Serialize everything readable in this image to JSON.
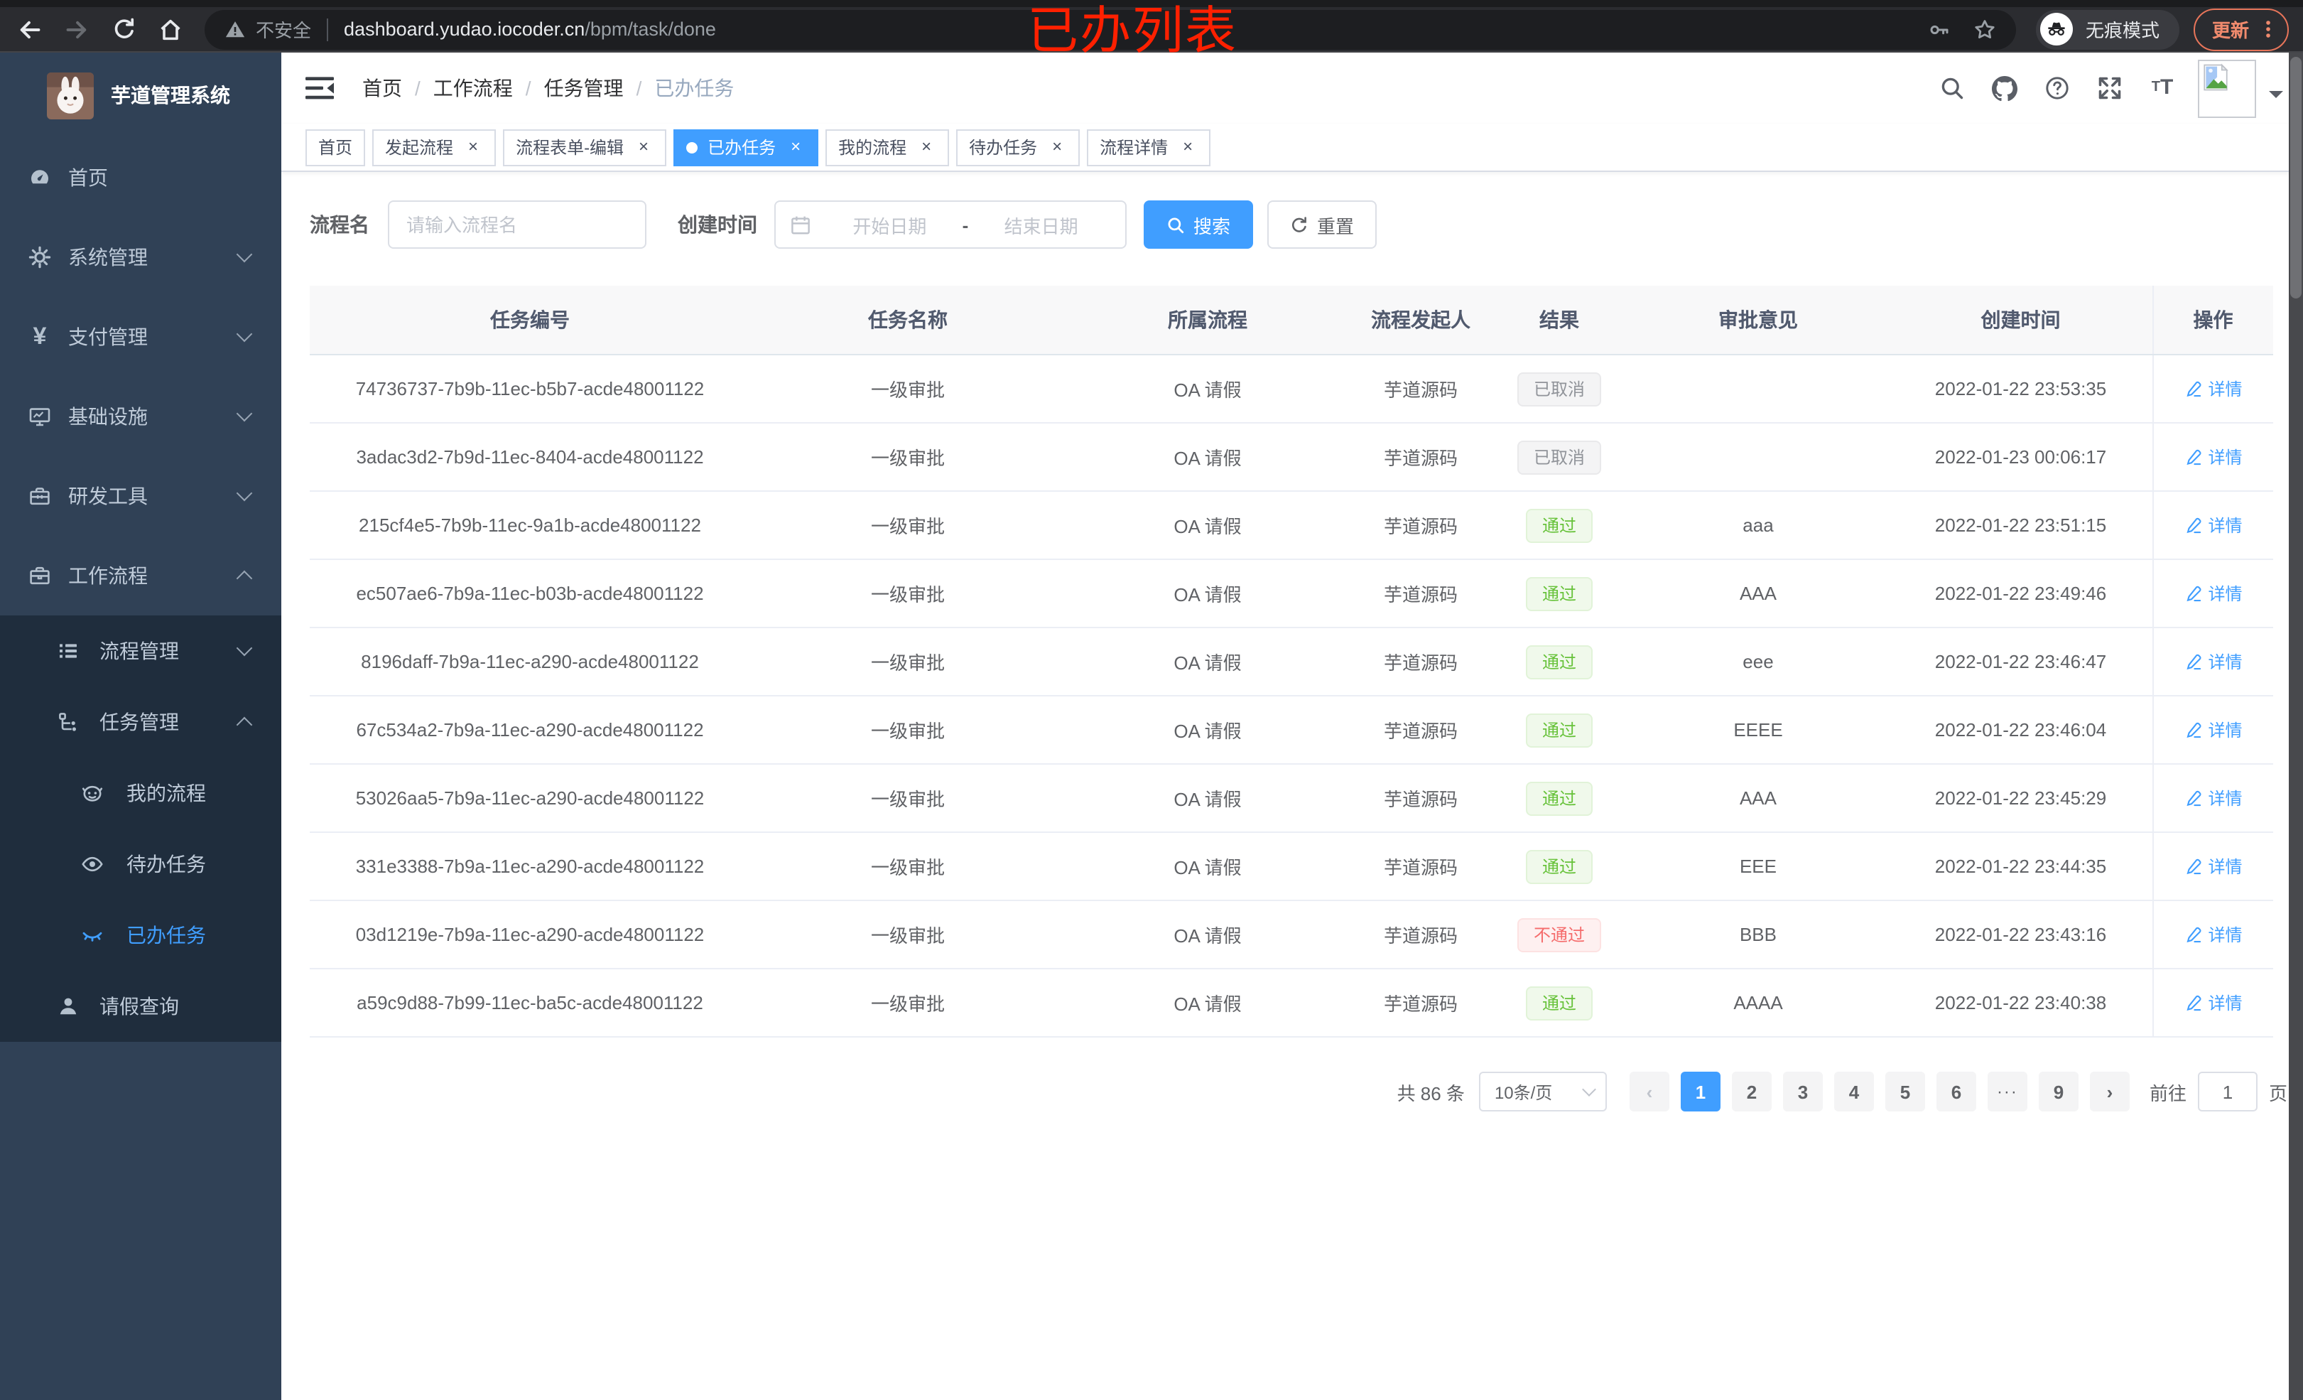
{
  "colors": {
    "accent": "#409eff",
    "success": "#67c23a",
    "danger": "#f56c6c",
    "info": "#909399",
    "sidebar_bg": "#304156",
    "submenu_bg": "#1f2d3d",
    "annotation": "#ff2000"
  },
  "browser": {
    "security_label": "不安全",
    "url_host": "dashboard.yudao.iocoder.cn",
    "url_path": "/bpm/task/done",
    "incognito_label": "无痕模式",
    "update_label": "更新",
    "icons": [
      "back-icon",
      "forward-icon",
      "reload-icon",
      "home-icon",
      "warning-icon",
      "key-icon",
      "star-icon",
      "incognito-icon",
      "more-vertical-icon"
    ]
  },
  "annotation": {
    "text": "已办列表"
  },
  "sidebar": {
    "logo_title": "芋道管理系统",
    "menu": [
      {
        "key": "home",
        "label": "首页",
        "icon": "dashboard-icon",
        "level": 1
      },
      {
        "key": "system",
        "label": "系统管理",
        "icon": "gear-icon",
        "level": 1,
        "chevron": "down"
      },
      {
        "key": "payment",
        "label": "支付管理",
        "icon": "yen-icon",
        "level": 1,
        "chevron": "down"
      },
      {
        "key": "infra",
        "label": "基础设施",
        "icon": "monitor-icon",
        "level": 1,
        "chevron": "down"
      },
      {
        "key": "devtools",
        "label": "研发工具",
        "icon": "toolbox-icon",
        "level": 1,
        "chevron": "down"
      },
      {
        "key": "workflow",
        "label": "工作流程",
        "icon": "briefcase-icon",
        "level": 1,
        "chevron": "up"
      },
      {
        "key": "process-mgmt",
        "label": "流程管理",
        "icon": "list-tree-icon",
        "level": 2,
        "chevron": "down",
        "dark": true
      },
      {
        "key": "task-mgmt",
        "label": "任务管理",
        "icon": "flow-icon",
        "level": 2,
        "chevron": "up",
        "dark": true
      },
      {
        "key": "my-process",
        "label": "我的流程",
        "icon": "face-icon",
        "level": 3,
        "dark": true
      },
      {
        "key": "todo-task",
        "label": "待办任务",
        "icon": "eye-open-icon",
        "level": 3,
        "dark": true
      },
      {
        "key": "done-task",
        "label": "已办任务",
        "icon": "eye-closed-icon",
        "level": 3,
        "dark": true,
        "active": true
      },
      {
        "key": "leave-query",
        "label": "请假查询",
        "icon": "user-icon",
        "level": 2,
        "dark": true
      }
    ]
  },
  "header": {
    "breadcrumb": [
      "首页",
      "工作流程",
      "任务管理",
      "已办任务"
    ],
    "icons": [
      "search-icon",
      "github-icon",
      "help-icon",
      "fullscreen-icon",
      "font-size-icon"
    ]
  },
  "tabs": [
    {
      "key": "home",
      "label": "首页",
      "closable": false
    },
    {
      "key": "start-process",
      "label": "发起流程",
      "closable": true
    },
    {
      "key": "form-edit",
      "label": "流程表单-编辑",
      "closable": true
    },
    {
      "key": "done-task",
      "label": "已办任务",
      "closable": true,
      "active": true
    },
    {
      "key": "my-process",
      "label": "我的流程",
      "closable": true
    },
    {
      "key": "todo-task",
      "label": "待办任务",
      "closable": true
    },
    {
      "key": "process-detail",
      "label": "流程详情",
      "closable": true
    }
  ],
  "filters": {
    "name_label": "流程名",
    "name_placeholder": "请输入流程名",
    "time_label": "创建时间",
    "start_placeholder": "开始日期",
    "separator": "-",
    "end_placeholder": "结束日期",
    "search_label": "搜索",
    "reset_label": "重置"
  },
  "table": {
    "headers": [
      "任务编号",
      "任务名称",
      "所属流程",
      "流程发起人",
      "结果",
      "审批意见",
      "创建时间",
      "操作"
    ],
    "action_label": "详情",
    "rows": [
      {
        "id": "74736737-7b9b-11ec-b5b7-acde48001122",
        "name": "一级审批",
        "process": "OA 请假",
        "starter": "芋道源码",
        "result": "已取消",
        "result_type": "info",
        "comment": "",
        "created": "2022-01-22 23:53:35"
      },
      {
        "id": "3adac3d2-7b9d-11ec-8404-acde48001122",
        "name": "一级审批",
        "process": "OA 请假",
        "starter": "芋道源码",
        "result": "已取消",
        "result_type": "info",
        "comment": "",
        "created": "2022-01-23 00:06:17"
      },
      {
        "id": "215cf4e5-7b9b-11ec-9a1b-acde48001122",
        "name": "一级审批",
        "process": "OA 请假",
        "starter": "芋道源码",
        "result": "通过",
        "result_type": "success",
        "comment": "aaa",
        "created": "2022-01-22 23:51:15"
      },
      {
        "id": "ec507ae6-7b9a-11ec-b03b-acde48001122",
        "name": "一级审批",
        "process": "OA 请假",
        "starter": "芋道源码",
        "result": "通过",
        "result_type": "success",
        "comment": "AAA",
        "created": "2022-01-22 23:49:46"
      },
      {
        "id": "8196daff-7b9a-11ec-a290-acde48001122",
        "name": "一级审批",
        "process": "OA 请假",
        "starter": "芋道源码",
        "result": "通过",
        "result_type": "success",
        "comment": "eee",
        "created": "2022-01-22 23:46:47"
      },
      {
        "id": "67c534a2-7b9a-11ec-a290-acde48001122",
        "name": "一级审批",
        "process": "OA 请假",
        "starter": "芋道源码",
        "result": "通过",
        "result_type": "success",
        "comment": "EEEE",
        "created": "2022-01-22 23:46:04"
      },
      {
        "id": "53026aa5-7b9a-11ec-a290-acde48001122",
        "name": "一级审批",
        "process": "OA 请假",
        "starter": "芋道源码",
        "result": "通过",
        "result_type": "success",
        "comment": "AAA",
        "created": "2022-01-22 23:45:29"
      },
      {
        "id": "331e3388-7b9a-11ec-a290-acde48001122",
        "name": "一级审批",
        "process": "OA 请假",
        "starter": "芋道源码",
        "result": "通过",
        "result_type": "success",
        "comment": "EEE",
        "created": "2022-01-22 23:44:35"
      },
      {
        "id": "03d1219e-7b9a-11ec-a290-acde48001122",
        "name": "一级审批",
        "process": "OA 请假",
        "starter": "芋道源码",
        "result": "不通过",
        "result_type": "danger",
        "comment": "BBB",
        "created": "2022-01-22 23:43:16"
      },
      {
        "id": "a59c9d88-7b99-11ec-ba5c-acde48001122",
        "name": "一级审批",
        "process": "OA 请假",
        "starter": "芋道源码",
        "result": "通过",
        "result_type": "success",
        "comment": "AAAA",
        "created": "2022-01-22 23:40:38"
      }
    ]
  },
  "pagination": {
    "total_label": "共 86 条",
    "page_size_label": "10条/页",
    "prev_label": "‹",
    "next_label": "›",
    "pages": [
      "1",
      "2",
      "3",
      "4",
      "5",
      "6",
      "···",
      "9"
    ],
    "active_page": "1",
    "goto_label": "前往",
    "goto_value": "1",
    "goto_suffix": "页"
  }
}
